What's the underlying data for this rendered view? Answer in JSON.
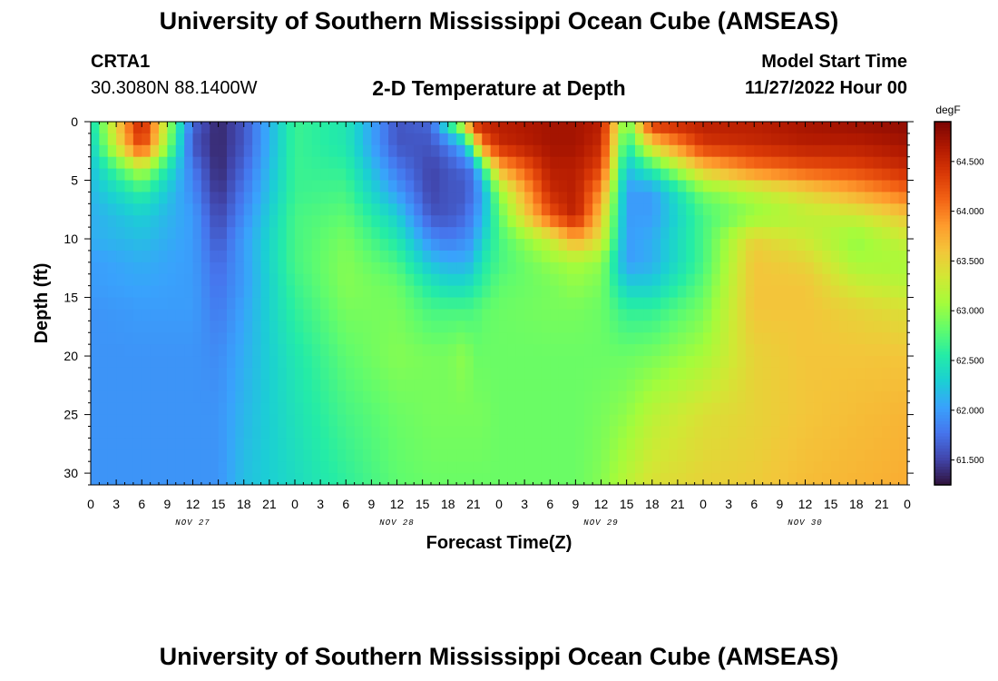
{
  "header": {
    "title": "University of Southern Mississippi Ocean Cube (AMSEAS)",
    "station": "CRTA1",
    "coords": "30.3080N  88.1400W",
    "subtitle": "2-D Temperature at Depth",
    "model_start_label": "Model Start Time",
    "model_start_value": "11/27/2022 Hour 00"
  },
  "footer": {
    "title": "University of Southern Mississippi Ocean Cube (AMSEAS)"
  },
  "chart_data": {
    "type": "heatmap",
    "title": "2-D Temperature at Depth",
    "xlabel": "Forecast Time(Z)",
    "ylabel": "Depth (ft)",
    "units": "degF",
    "x_ticks": [
      "0",
      "3",
      "6",
      "9",
      "12",
      "15",
      "18",
      "21",
      "0",
      "3",
      "6",
      "9",
      "12",
      "15",
      "18",
      "21",
      "0",
      "3",
      "6",
      "9",
      "12",
      "15",
      "18",
      "21",
      "0",
      "3",
      "6",
      "9",
      "12",
      "15",
      "18",
      "21",
      "0"
    ],
    "x_hours": [
      0,
      3,
      6,
      9,
      12,
      15,
      18,
      21,
      24,
      27,
      30,
      33,
      36,
      39,
      42,
      45,
      48,
      51,
      54,
      57,
      60,
      63,
      66,
      69,
      72,
      75,
      78,
      81,
      84,
      87,
      90,
      93,
      96
    ],
    "x_range_hours": [
      0,
      96
    ],
    "day_labels": [
      {
        "label": "NOV 27",
        "hour": 12
      },
      {
        "label": "NOV 28",
        "hour": 36
      },
      {
        "label": "NOV 29",
        "hour": 60
      },
      {
        "label": "NOV 30",
        "hour": 84
      }
    ],
    "y_ticks": [
      "0",
      "5",
      "10",
      "15",
      "20",
      "25",
      "30"
    ],
    "y_values": [
      0,
      5,
      10,
      15,
      20,
      25,
      30
    ],
    "y_range": [
      0,
      31
    ],
    "y_inverted": true,
    "colorbar": {
      "range": [
        61.25,
        64.9
      ],
      "ticks": [
        "61.500",
        "62.000",
        "62.500",
        "63.000",
        "63.500",
        "64.000",
        "64.500"
      ],
      "tick_values": [
        61.5,
        62.0,
        62.5,
        63.0,
        63.5,
        64.0,
        64.5
      ],
      "colormap": "turbo",
      "colors": [
        "#30123b",
        "#4145ab",
        "#4675ed",
        "#39a2fc",
        "#1bcfd4",
        "#24eca6",
        "#61fc6c",
        "#a4fc3b",
        "#d1e834",
        "#f3c63a",
        "#fe9b2d",
        "#f36315",
        "#d93806",
        "#b11901",
        "#7a0403"
      ]
    },
    "series_note": "Temperature field (degF) sampled at x_hours_grid (hour) and depth_grid (ft)",
    "x_hours_grid": [
      0,
      6,
      12,
      15,
      18,
      24,
      30,
      36,
      40,
      42,
      44,
      45,
      46,
      48,
      54,
      57,
      60,
      63,
      66,
      72,
      78,
      84,
      90,
      96
    ],
    "depth_grid": [
      0,
      2,
      4,
      6,
      8,
      10,
      12,
      14,
      16,
      20,
      25,
      31
    ],
    "values": [
      [
        62.4,
        64.6,
        61.7,
        61.35,
        61.6,
        62.65,
        62.5,
        61.6,
        61.7,
        62.6,
        63.5,
        64.6,
        64.6,
        64.6,
        64.7,
        64.7,
        64.6,
        62.8,
        64.5,
        64.6,
        64.6,
        64.7,
        64.75,
        64.8
      ],
      [
        62.3,
        64.4,
        61.6,
        61.35,
        61.6,
        62.65,
        62.5,
        61.6,
        61.6,
        61.8,
        62.2,
        63.0,
        64.0,
        64.5,
        64.7,
        64.7,
        64.5,
        62.5,
        63.5,
        64.4,
        64.5,
        64.6,
        64.6,
        64.7
      ],
      [
        62.2,
        63.2,
        61.8,
        61.35,
        61.7,
        62.65,
        62.6,
        61.8,
        61.5,
        61.6,
        61.7,
        61.8,
        62.5,
        63.7,
        64.6,
        64.6,
        64.3,
        62.2,
        62.6,
        63.6,
        64.0,
        64.2,
        64.3,
        64.5
      ],
      [
        62.15,
        62.6,
        61.9,
        61.4,
        61.8,
        62.65,
        62.7,
        62.0,
        61.5,
        61.6,
        61.6,
        61.8,
        62.0,
        63.0,
        64.5,
        64.6,
        63.9,
        62.0,
        62.0,
        62.9,
        63.2,
        63.5,
        63.8,
        64.1
      ],
      [
        62.1,
        62.3,
        62.0,
        61.5,
        61.9,
        62.7,
        62.8,
        62.3,
        61.6,
        61.6,
        61.7,
        61.9,
        62.1,
        62.8,
        64.2,
        64.6,
        63.6,
        62.0,
        62.0,
        62.7,
        63.0,
        63.2,
        63.3,
        63.6
      ],
      [
        62.1,
        62.2,
        62.0,
        61.6,
        62.0,
        62.7,
        62.9,
        62.5,
        61.9,
        61.8,
        61.9,
        62.0,
        62.3,
        62.7,
        63.3,
        63.8,
        63.4,
        62.0,
        62.1,
        62.7,
        63.5,
        63.3,
        63.0,
        63.3
      ],
      [
        62.0,
        62.1,
        62.0,
        61.7,
        62.0,
        62.7,
        62.95,
        62.7,
        62.2,
        62.1,
        62.1,
        62.2,
        62.5,
        62.7,
        63.0,
        63.1,
        63.0,
        62.0,
        62.1,
        62.7,
        63.6,
        63.5,
        63.1,
        63.1
      ],
      [
        62.0,
        62.05,
        62.0,
        61.75,
        62.0,
        62.65,
        62.95,
        62.85,
        62.5,
        62.4,
        62.4,
        62.5,
        62.6,
        62.8,
        62.9,
        63.0,
        62.9,
        62.3,
        62.3,
        62.8,
        63.6,
        63.6,
        63.3,
        63.2
      ],
      [
        61.95,
        62.0,
        62.0,
        61.8,
        62.05,
        62.6,
        62.9,
        62.9,
        62.7,
        62.7,
        62.7,
        62.7,
        62.8,
        62.85,
        62.9,
        62.9,
        62.85,
        62.6,
        62.6,
        62.9,
        63.6,
        63.6,
        63.5,
        63.4
      ],
      [
        61.95,
        61.95,
        61.95,
        61.9,
        62.1,
        62.5,
        62.8,
        62.95,
        62.9,
        62.9,
        63.0,
        62.85,
        62.85,
        62.85,
        62.85,
        62.85,
        62.85,
        62.85,
        62.9,
        63.1,
        63.5,
        63.6,
        63.6,
        63.6
      ],
      [
        61.95,
        61.95,
        61.95,
        61.95,
        62.15,
        62.45,
        62.7,
        62.85,
        62.9,
        62.9,
        62.9,
        62.9,
        62.9,
        62.85,
        62.85,
        62.85,
        62.9,
        63.0,
        63.2,
        63.4,
        63.5,
        63.6,
        63.65,
        63.7
      ],
      [
        61.95,
        61.95,
        61.95,
        61.95,
        62.2,
        62.4,
        62.6,
        62.8,
        62.85,
        62.85,
        62.85,
        62.85,
        62.85,
        62.85,
        62.85,
        62.85,
        62.95,
        63.2,
        63.4,
        63.5,
        63.55,
        63.65,
        63.7,
        63.75
      ]
    ]
  }
}
